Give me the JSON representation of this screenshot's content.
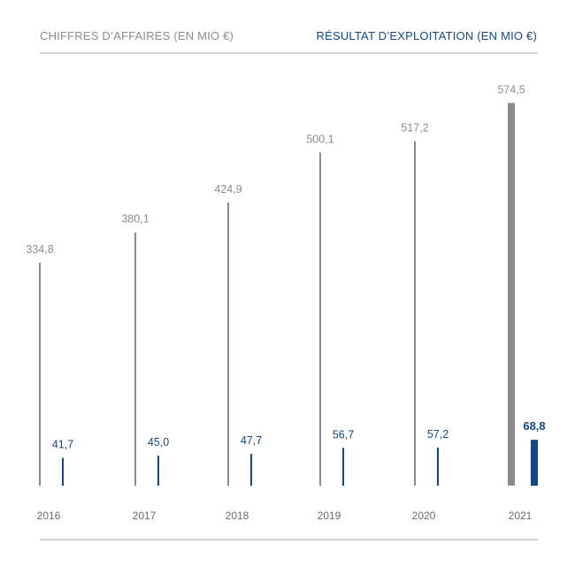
{
  "legend": {
    "revenue_label": "CHIFFRES D’AFFAIRES (EN MIO €)",
    "operating_result_label": "RÉSULTAT D’EXPLOITATION (EN MIO €)"
  },
  "colors": {
    "revenue": "#8c8c8c",
    "operating_result": "#12488a",
    "rule": "#cfcfcf",
    "axis_text": "#6b6b6b"
  },
  "chart_data": {
    "type": "bar",
    "categories": [
      "2016",
      "2017",
      "2018",
      "2019",
      "2020",
      "2021"
    ],
    "series": [
      {
        "name": "CHIFFRES D’AFFAIRES (EN MIO €)",
        "values": [
          334.8,
          380.1,
          424.9,
          500.1,
          517.2,
          574.5
        ],
        "labels": [
          "334,8",
          "380,1",
          "424,9",
          "500,1",
          "517,2",
          "574,5"
        ]
      },
      {
        "name": "RÉSULTAT D’EXPLOITATION (EN MIO €)",
        "values": [
          41.7,
          45.0,
          47.7,
          56.7,
          57.2,
          68.8
        ],
        "labels": [
          "41,7",
          "45,0",
          "47,7",
          "56,7",
          "57,2",
          "68,8"
        ]
      }
    ],
    "highlight_category": "2021",
    "legend_position": "top",
    "grid": false
  }
}
